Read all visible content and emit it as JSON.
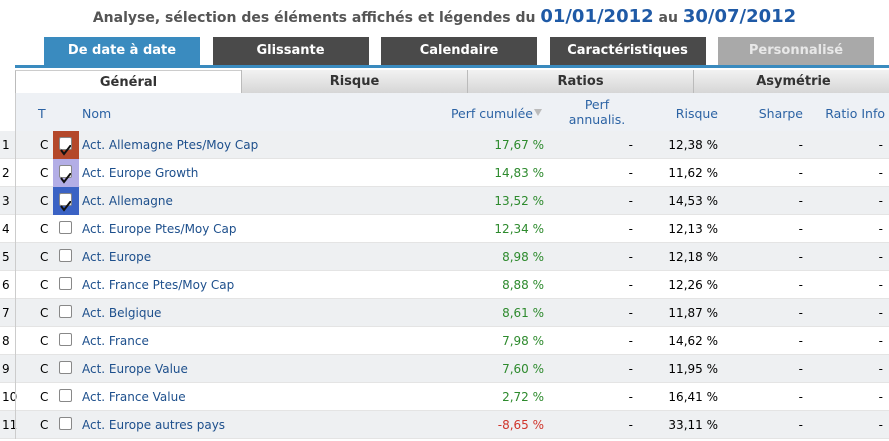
{
  "header": {
    "title": "Analyse, sélection des éléments affichés et légendes du",
    "start_date": "01/01/2012",
    "connector": "au",
    "end_date": "30/07/2012"
  },
  "tabs": [
    {
      "label": "De date à date",
      "state": "active"
    },
    {
      "label": "Glissante",
      "state": "normal"
    },
    {
      "label": "Calendaire",
      "state": "normal"
    },
    {
      "label": "Caractéristiques",
      "state": "normal"
    },
    {
      "label": "Personnalisé",
      "state": "disabled"
    }
  ],
  "subtabs": [
    {
      "label": "Général",
      "active": true
    },
    {
      "label": "Risque",
      "active": false
    },
    {
      "label": "Ratios",
      "active": false
    },
    {
      "label": "Asymétrie",
      "active": false
    }
  ],
  "table": {
    "columns": [
      "T",
      "Nom",
      "Perf cumulée",
      "Perf annualis.",
      "Risque",
      "Sharpe",
      "Ratio Info"
    ],
    "rows": [
      {
        "index": 1,
        "t": "C",
        "checked": true,
        "color": "#b4482a",
        "name": "Act. Allemagne Ptes/Moy Cap",
        "perf": "17,67 %",
        "perf_annualised": "-",
        "risk": "12,38 %",
        "sharpe": "-",
        "ratio_info": "-"
      },
      {
        "index": 2,
        "t": "C",
        "checked": true,
        "color": "#b3aee6",
        "name": "Act. Europe Growth",
        "perf": "14,83 %",
        "perf_annualised": "-",
        "risk": "11,62 %",
        "sharpe": "-",
        "ratio_info": "-"
      },
      {
        "index": 3,
        "t": "C",
        "checked": true,
        "color": "#3a62c4",
        "name": "Act. Allemagne",
        "perf": "13,52 %",
        "perf_annualised": "-",
        "risk": "14,53 %",
        "sharpe": "-",
        "ratio_info": "-"
      },
      {
        "index": 4,
        "t": "C",
        "checked": false,
        "name": "Act. Europe Ptes/Moy Cap",
        "perf": "12,34 %",
        "perf_annualised": "-",
        "risk": "12,13 %",
        "sharpe": "-",
        "ratio_info": "-"
      },
      {
        "index": 5,
        "t": "C",
        "checked": false,
        "name": "Act. Europe",
        "perf": "8,98 %",
        "perf_annualised": "-",
        "risk": "12,18 %",
        "sharpe": "-",
        "ratio_info": "-"
      },
      {
        "index": 6,
        "t": "C",
        "checked": false,
        "name": "Act. France Ptes/Moy Cap",
        "perf": "8,88 %",
        "perf_annualised": "-",
        "risk": "12,26 %",
        "sharpe": "-",
        "ratio_info": "-"
      },
      {
        "index": 7,
        "t": "C",
        "checked": false,
        "name": "Act. Belgique",
        "perf": "8,61 %",
        "perf_annualised": "-",
        "risk": "11,87 %",
        "sharpe": "-",
        "ratio_info": "-"
      },
      {
        "index": 8,
        "t": "C",
        "checked": false,
        "name": "Act. France",
        "perf": "7,98 %",
        "perf_annualised": "-",
        "risk": "14,62 %",
        "sharpe": "-",
        "ratio_info": "-"
      },
      {
        "index": 9,
        "t": "C",
        "checked": false,
        "name": "Act. Europe Value",
        "perf": "7,60 %",
        "perf_annualised": "-",
        "risk": "11,95 %",
        "sharpe": "-",
        "ratio_info": "-"
      },
      {
        "index": 10,
        "t": "C",
        "checked": false,
        "name": "Act. France Value",
        "perf": "2,72 %",
        "perf_annualised": "-",
        "risk": "16,41 %",
        "sharpe": "-",
        "ratio_info": "-"
      },
      {
        "index": 11,
        "t": "C",
        "checked": false,
        "name": "Act. Europe autres pays",
        "perf": "-8,65 %",
        "perf_annualised": "-",
        "risk": "33,11 %",
        "sharpe": "-",
        "ratio_info": "-"
      }
    ]
  }
}
